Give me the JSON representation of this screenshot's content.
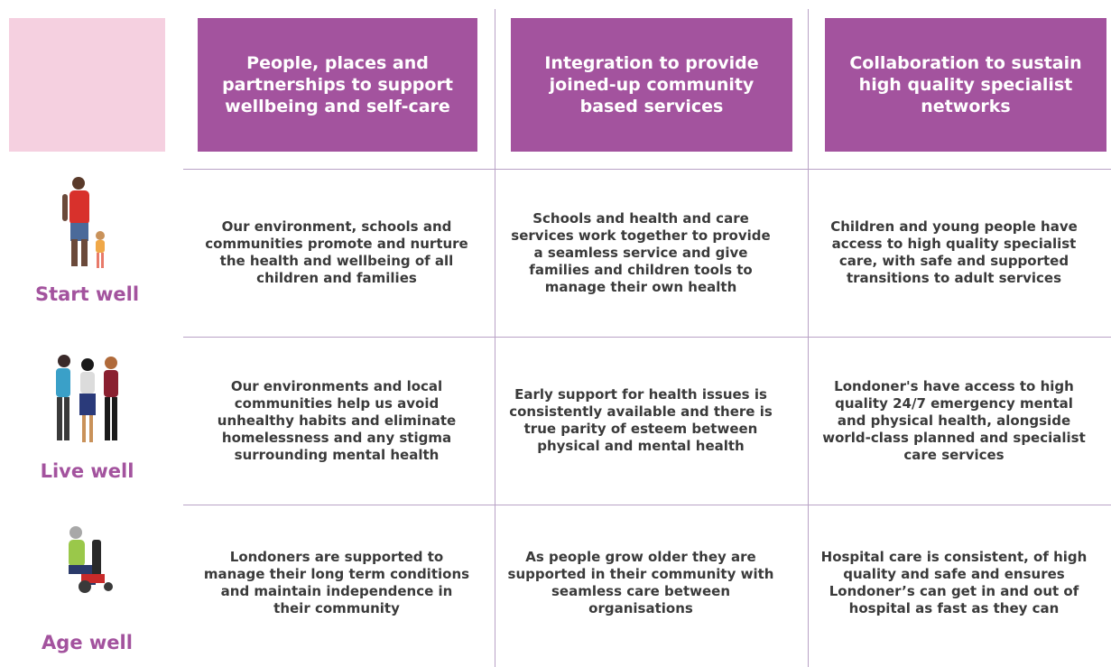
{
  "header": {
    "columns": [
      "People, places and partnerships to support wellbeing and self-care",
      "Integration to provide joined-up community based services",
      "Collaboration to sustain high quality specialist networks"
    ]
  },
  "rows": [
    {
      "label": "Start well",
      "cells": [
        "Our environment, schools and communities promote and nurture the health and wellbeing of all children and families",
        "Schools and health and care services work together to provide a seamless service and give families and children tools to manage their own health",
        "Children and young people have access to high quality specialist care, with safe and supported transitions to adult services"
      ]
    },
    {
      "label": "Live well",
      "cells": [
        "Our environments and local communities help us avoid unhealthy habits and eliminate homelessness and any stigma surrounding mental health",
        "Early support for health issues is consistently available and there is true parity of esteem between physical and mental health",
        "Londoner's have access to high quality 24/7 emergency mental and physical health, alongside world-class planned and specialist care services"
      ]
    },
    {
      "label": "Age well",
      "cells": [
        "Londoners are supported to manage their long term conditions and maintain independence in their community",
        "As people grow older they are supported in their community with seamless care between organisations",
        "Hospital care is consistent, of high quality and safe and ensures Londoner’s can get in and out of hospital as fast as they can"
      ]
    }
  ]
}
